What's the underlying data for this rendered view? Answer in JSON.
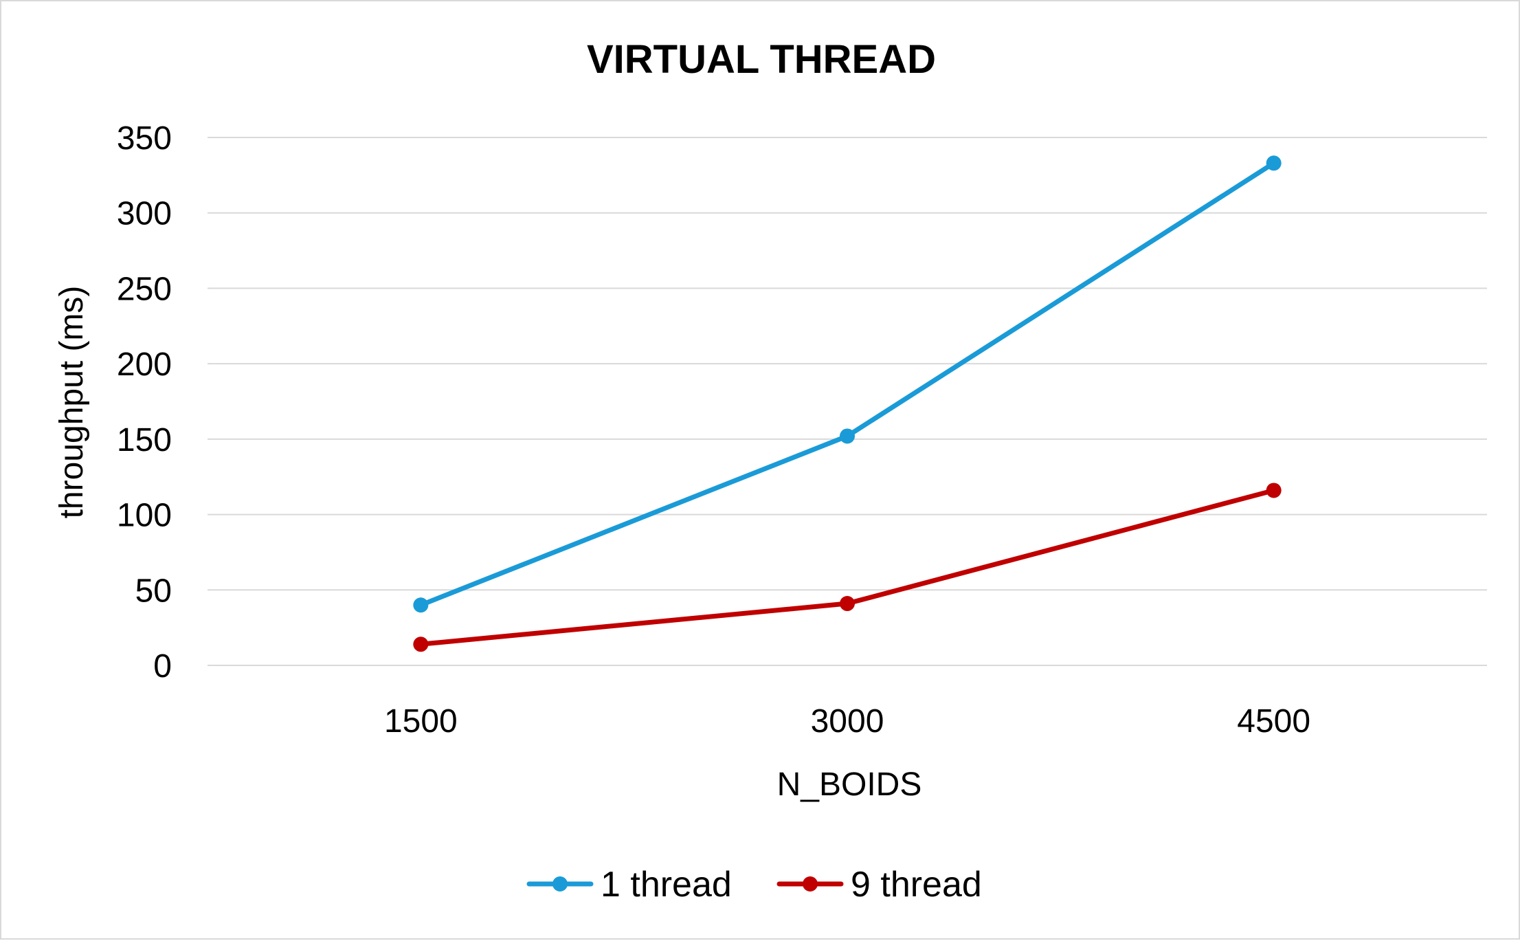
{
  "chart_data": {
    "type": "line",
    "title": "VIRTUAL THREAD",
    "xlabel": "N_BOIDS",
    "ylabel": "throughput (ms)",
    "categories": [
      "1500",
      "3000",
      "4500"
    ],
    "ylim": [
      0,
      350
    ],
    "yticks": [
      0,
      50,
      100,
      150,
      200,
      250,
      300,
      350
    ],
    "grid": true,
    "legend_position": "bottom",
    "series": [
      {
        "name": "1 thread",
        "color": "#1a9bd7",
        "values": [
          40,
          152,
          333
        ]
      },
      {
        "name": "9 thread",
        "color": "#c00000",
        "values": [
          14,
          41,
          116
        ]
      }
    ]
  }
}
